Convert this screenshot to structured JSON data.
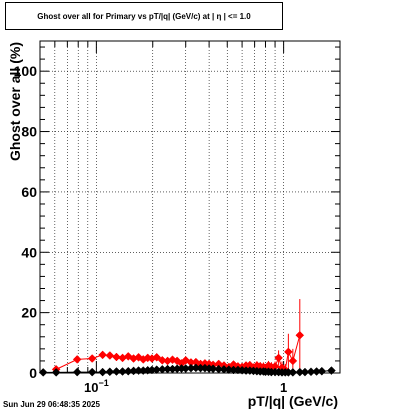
{
  "chart_data": {
    "type": "scatter",
    "title": "Ghost over all for Primary vs pT/|q| (GeV/c) at |  η  | <= 1.0",
    "xlabel": "pT/|q| (GeV/c)",
    "ylabel": "Ghost over all (%)",
    "xscale": "log",
    "xlim": [
      0.05,
      2.0
    ],
    "ylim": [
      0,
      110
    ],
    "grid": true,
    "y_ticks": [
      0,
      20,
      40,
      60,
      80,
      100
    ],
    "x_tick_labels": [
      {
        "value": 0.1,
        "base": "10",
        "exp": "−1"
      },
      {
        "value": 1,
        "base": "1",
        "exp": ""
      }
    ],
    "series": [
      {
        "color": "#ff0000",
        "x": [
          0.061,
          0.079,
          0.095,
          0.108,
          0.118,
          0.128,
          0.138,
          0.148,
          0.158,
          0.168,
          0.178,
          0.188,
          0.198,
          0.21,
          0.225,
          0.24,
          0.255,
          0.27,
          0.285,
          0.3,
          0.32,
          0.34,
          0.36,
          0.38,
          0.4,
          0.42,
          0.45,
          0.48,
          0.51,
          0.54,
          0.57,
          0.6,
          0.63,
          0.66,
          0.69,
          0.72,
          0.75,
          0.78,
          0.8,
          0.83,
          0.86,
          0.9,
          0.94,
          0.98,
          1.02,
          1.06,
          1.12,
          1.22
        ],
        "y": [
          1.2,
          4.5,
          4.8,
          6.0,
          5.8,
          5.3,
          5.0,
          5.5,
          4.8,
          5.2,
          4.5,
          5.0,
          4.8,
          5.2,
          4.2,
          4.0,
          4.4,
          4.0,
          3.2,
          4.2,
          3.5,
          3.6,
          3.0,
          3.2,
          3.0,
          2.7,
          3.0,
          2.5,
          2.0,
          2.8,
          2.2,
          2.0,
          2.5,
          2.6,
          1.8,
          2.5,
          2.2,
          2.0,
          1.5,
          2.5,
          2.0,
          2.2,
          5.0,
          1.8,
          1.0,
          7.0,
          4.0,
          12.5
        ],
        "err": [
          0.6,
          0.8,
          0.7,
          0.6,
          0.6,
          0.6,
          0.6,
          0.6,
          0.6,
          0.6,
          0.6,
          0.6,
          0.6,
          0.6,
          0.7,
          0.7,
          0.7,
          0.7,
          0.8,
          0.8,
          0.8,
          0.8,
          0.9,
          0.9,
          0.9,
          1.0,
          1.0,
          1.0,
          1.0,
          1.1,
          1.1,
          1.2,
          1.2,
          1.3,
          1.3,
          1.4,
          1.4,
          1.5,
          1.5,
          1.5,
          1.6,
          1.6,
          2.5,
          2.0,
          2.0,
          6.0,
          4.0,
          12.0
        ]
      },
      {
        "color": "#000000",
        "x": [
          0.052,
          0.061,
          0.079,
          0.095,
          0.108,
          0.118,
          0.128,
          0.138,
          0.148,
          0.158,
          0.168,
          0.178,
          0.188,
          0.198,
          0.21,
          0.225,
          0.24,
          0.255,
          0.27,
          0.285,
          0.3,
          0.32,
          0.34,
          0.36,
          0.38,
          0.4,
          0.42,
          0.45,
          0.48,
          0.51,
          0.54,
          0.57,
          0.6,
          0.63,
          0.66,
          0.69,
          0.72,
          0.75,
          0.78,
          0.8,
          0.83,
          0.86,
          0.9,
          0.94,
          0.98,
          1.02,
          1.06,
          1.12,
          1.22,
          1.3,
          1.4,
          1.5,
          1.6,
          1.8
        ],
        "y": [
          0.2,
          0.2,
          0.3,
          0.3,
          0.3,
          0.4,
          0.5,
          0.5,
          0.6,
          0.7,
          0.8,
          0.8,
          0.9,
          1.0,
          1.1,
          1.2,
          1.3,
          1.3,
          1.4,
          1.5,
          1.5,
          1.6,
          1.7,
          1.6,
          1.6,
          1.5,
          1.4,
          1.3,
          1.2,
          1.1,
          1.0,
          1.0,
          0.9,
          0.8,
          0.8,
          0.7,
          0.6,
          0.5,
          0.5,
          0.4,
          0.4,
          0.3,
          0.3,
          0.3,
          0.2,
          0.2,
          0.2,
          0.2,
          0.3,
          0.3,
          0.4,
          0.5,
          0.6,
          0.8
        ],
        "err": []
      }
    ]
  },
  "footer": {
    "timestamp": "Sun Jun 29 06:48:35 2025"
  }
}
